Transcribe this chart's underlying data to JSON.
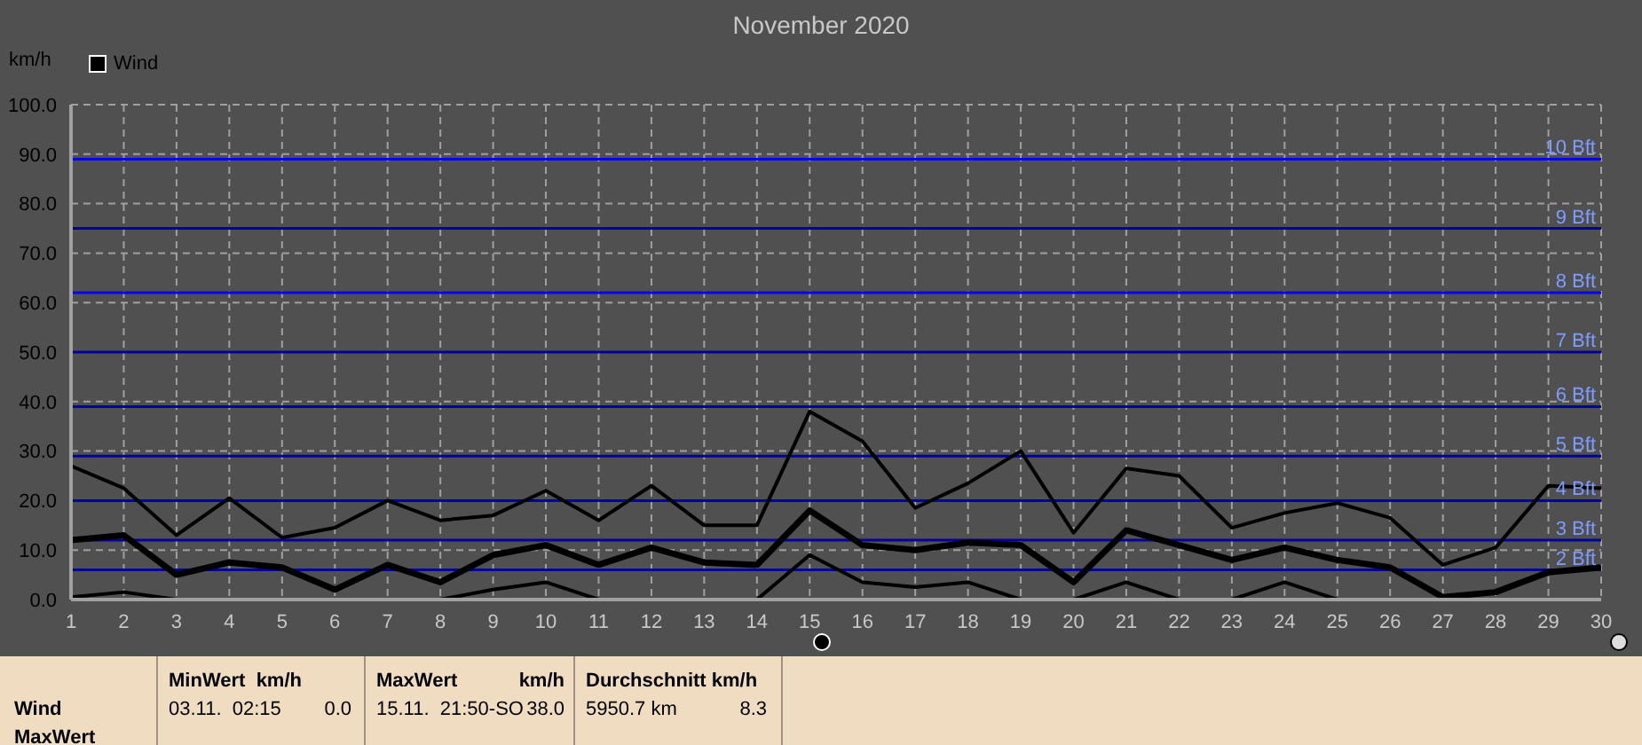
{
  "chart_data": {
    "type": "line",
    "title": "November 2020",
    "ylabel": "km/h",
    "legend": "top left",
    "grid": true,
    "marker": "none",
    "line_style": "solid",
    "x": [
      1,
      2,
      3,
      4,
      5,
      6,
      7,
      8,
      9,
      10,
      11,
      12,
      13,
      14,
      15,
      16,
      17,
      18,
      19,
      20,
      21,
      22,
      23,
      24,
      25,
      26,
      27,
      28,
      29,
      30
    ],
    "xlim": [
      1,
      30
    ],
    "xticks": [
      1,
      2,
      3,
      4,
      5,
      6,
      7,
      8,
      9,
      10,
      11,
      12,
      13,
      14,
      15,
      16,
      17,
      18,
      19,
      20,
      21,
      22,
      23,
      24,
      25,
      26,
      27,
      28,
      29,
      30
    ],
    "ylim": [
      0,
      100
    ],
    "yticks": [
      {
        "value": 0,
        "label": "0.0"
      },
      {
        "value": 10,
        "label": "10.0"
      },
      {
        "value": 20,
        "label": "20.0"
      },
      {
        "value": 30,
        "label": "30.0"
      },
      {
        "value": 40,
        "label": "40.0"
      },
      {
        "value": 50,
        "label": "50.0"
      },
      {
        "value": 60,
        "label": "60.0"
      },
      {
        "value": 70,
        "label": "70.0"
      },
      {
        "value": 80,
        "label": "80.0"
      },
      {
        "value": 90,
        "label": "90.0"
      },
      {
        "value": 100,
        "label": "100.0"
      }
    ],
    "series": [
      {
        "color": "#000000",
        "values": [
          27,
          22.5,
          13,
          20.5,
          12.5,
          14.5,
          20,
          16,
          17,
          22,
          16,
          23,
          15,
          15,
          38,
          32,
          18.5,
          23.5,
          30,
          13.5,
          26.5,
          25,
          14.5,
          17.5,
          19.5,
          16.5,
          7,
          10.5,
          23,
          22.5
        ]
      },
      {
        "name": "Wind",
        "color": "#000000",
        "values": [
          12,
          13,
          5,
          7.5,
          6.5,
          2,
          7,
          3.5,
          9,
          11,
          7,
          10.5,
          7.5,
          7,
          18,
          11,
          10,
          11.5,
          11,
          3.5,
          14,
          11,
          8,
          10.5,
          8,
          6.5,
          0.5,
          1.5,
          5.5,
          6.5
        ]
      },
      {
        "color": "#000000",
        "values": [
          0.5,
          1.5,
          0,
          0,
          0,
          0,
          0,
          0,
          2,
          3.5,
          0,
          0,
          0,
          0,
          9,
          3.5,
          2.5,
          3.5,
          0,
          0,
          3.5,
          0,
          0,
          3.5,
          0,
          0,
          0,
          0,
          0,
          0
        ]
      }
    ],
    "ref_lines": [
      {
        "axis": "y",
        "value": 6,
        "label": "2 Bft",
        "color": "#0000a0"
      },
      {
        "axis": "y",
        "value": 12,
        "label": "3 Bft",
        "color": "#0000a0"
      },
      {
        "axis": "y",
        "value": 20,
        "label": "4 Bft",
        "color": "#0000a0"
      },
      {
        "axis": "y",
        "value": 29,
        "label": "5 Bft",
        "color": "#0000a0"
      },
      {
        "axis": "y",
        "value": 39,
        "label": "6 Bft",
        "color": "#0000a0"
      },
      {
        "axis": "y",
        "value": 50,
        "label": "7 Bft",
        "color": "#0000a0"
      },
      {
        "axis": "y",
        "value": 62,
        "label": "8 Bft",
        "color": "#0000ff"
      },
      {
        "axis": "y",
        "value": 75,
        "label": "9 Bft",
        "color": "#0000a0"
      },
      {
        "axis": "y",
        "value": 89,
        "label": "10 Bft",
        "color": "#0000ff"
      }
    ],
    "annotations": [
      "Wind",
      "MaxWert",
      "MinWert",
      "km/h",
      "03.11.  02:15",
      "0.0",
      "MaxWert",
      "km/h",
      "15.11.  21:50-SO",
      "38.0",
      "Durchschnitt km/h",
      "5950.7 km",
      "8.3"
    ]
  }
}
